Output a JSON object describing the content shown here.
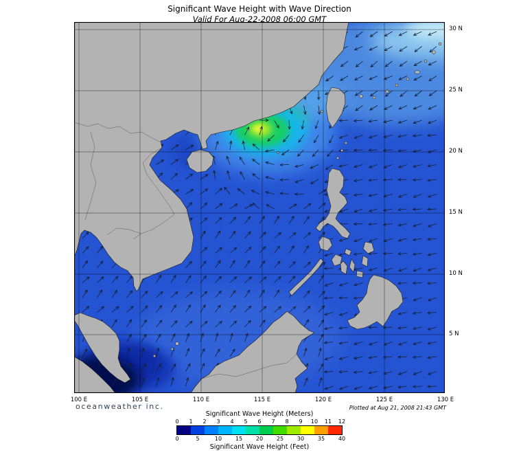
{
  "header": {
    "title": "Significant Wave Height with Wave Direction",
    "subtitle": "Valid For Aug-22-2008 06:00 GMT"
  },
  "map": {
    "x_ticks": [
      "100 E",
      "105 E",
      "110 E",
      "115 E",
      "120 E",
      "125 E",
      "130 E"
    ],
    "y_ticks": [
      "30 N",
      "25 N",
      "20 N",
      "15 N",
      "10 N",
      "5 N"
    ]
  },
  "footer": {
    "brand": "oceanweather inc.",
    "plotted": "Plotted at Aug 21, 2008 21:43 GMT"
  },
  "legend": {
    "meters_label": "Significant Wave Height (Meters)",
    "feet_label": "Significant Wave Height (Feet)",
    "meters_ticks": [
      "0",
      "1",
      "2",
      "3",
      "4",
      "5",
      "6",
      "7",
      "8",
      "9",
      "10",
      "11",
      "12"
    ],
    "feet_ticks": [
      "0",
      "5",
      "10",
      "15",
      "20",
      "25",
      "30",
      "35",
      "40"
    ],
    "colors": [
      "#000080",
      "#0040dc",
      "#0080ff",
      "#00b4ff",
      "#00e0f0",
      "#00e0a8",
      "#00cc50",
      "#40dc00",
      "#a0ec00",
      "#ffff00",
      "#ffa000",
      "#ff2800"
    ]
  }
}
